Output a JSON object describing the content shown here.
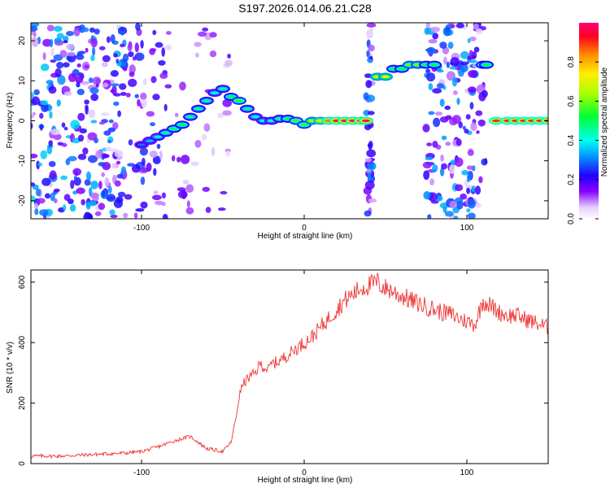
{
  "title": "S197.2026.014.06.21.C28",
  "chart_data": [
    {
      "type": "heatmap",
      "title": "S197.2026.014.06.21.C28",
      "xlabel": "Height of straight line (km)",
      "ylabel": "Frequency (Hz)",
      "xlim": [
        -168,
        150
      ],
      "ylim": [
        -24.5,
        24.5
      ],
      "x_ticks": [
        -100,
        0,
        100
      ],
      "y_ticks": [
        -20,
        -10,
        0,
        10,
        20
      ],
      "colorbar": {
        "label": "Normalized spectral amplitude",
        "range": [
          0.0,
          1.0
        ],
        "ticks": [
          0.0,
          0.2,
          0.4,
          0.6,
          0.8
        ]
      },
      "ridge": {
        "x": [
          -100,
          -95,
          -90,
          -85,
          -80,
          -75,
          -70,
          -65,
          -60,
          -55,
          -50,
          -45,
          -40,
          -35,
          -30,
          -25,
          -20,
          -15,
          -10,
          -5,
          0,
          5,
          10,
          15,
          20,
          25,
          30,
          35,
          38,
          45,
          50,
          55,
          60,
          65,
          70,
          75,
          80,
          110,
          112,
          118,
          125,
          130,
          135,
          140,
          145,
          150
        ],
        "y": [
          -6,
          -5,
          -4,
          -3,
          -2,
          -1,
          1,
          3,
          5,
          7,
          8,
          6,
          5,
          3,
          1,
          0,
          0,
          0.5,
          0.5,
          0,
          -1,
          0,
          0,
          0,
          0,
          0,
          0,
          0,
          0,
          11,
          11,
          13,
          13,
          14,
          14,
          14,
          14,
          14,
          14,
          0,
          0,
          0,
          0,
          0,
          0,
          0
        ],
        "amplitude": [
          0.3,
          0.35,
          0.4,
          0.45,
          0.5,
          0.5,
          0.45,
          0.45,
          0.45,
          0.4,
          0.45,
          0.5,
          0.55,
          0.45,
          0.4,
          0.4,
          0.4,
          0.45,
          0.5,
          0.55,
          0.55,
          0.65,
          0.75,
          0.85,
          0.95,
          1.0,
          1.0,
          1.0,
          1.0,
          0.7,
          0.7,
          0.5,
          0.5,
          0.6,
          0.6,
          0.5,
          0.5,
          0.5,
          0.5,
          0.9,
          0.9,
          0.9,
          0.9,
          0.9,
          0.9,
          0.9
        ]
      }
    },
    {
      "type": "line",
      "xlabel": "Height of straight line (km)",
      "ylabel": "SNR (10 * v/v)",
      "xlim": [
        -168,
        150
      ],
      "ylim": [
        0,
        640
      ],
      "x_ticks": [
        -100,
        0,
        100
      ],
      "y_ticks": [
        0,
        200,
        400,
        600
      ],
      "series": [
        {
          "name": "SNR",
          "color": "#ee3333",
          "x": [
            -168,
            -150,
            -130,
            -110,
            -100,
            -90,
            -80,
            -70,
            -60,
            -50,
            -45,
            -42,
            -40,
            -38,
            -35,
            -30,
            -27,
            -25,
            -22,
            -20,
            -15,
            -10,
            -5,
            0,
            5,
            10,
            15,
            20,
            25,
            30,
            35,
            40,
            45,
            47,
            50,
            55,
            57,
            60,
            62,
            65,
            70,
            72,
            75,
            80,
            85,
            90,
            95,
            100,
            105,
            110,
            115,
            120,
            125,
            130,
            135,
            140,
            145,
            150
          ],
          "y": [
            25,
            25,
            30,
            35,
            40,
            55,
            75,
            90,
            50,
            40,
            70,
            150,
            220,
            260,
            280,
            300,
            330,
            320,
            310,
            330,
            340,
            360,
            380,
            400,
            420,
            450,
            480,
            510,
            540,
            560,
            580,
            590,
            600,
            590,
            580,
            570,
            560,
            555,
            550,
            540,
            530,
            525,
            520,
            510,
            500,
            495,
            480,
            470,
            460,
            540,
            520,
            500,
            490,
            490,
            480,
            470,
            460,
            450
          ]
        }
      ]
    }
  ]
}
